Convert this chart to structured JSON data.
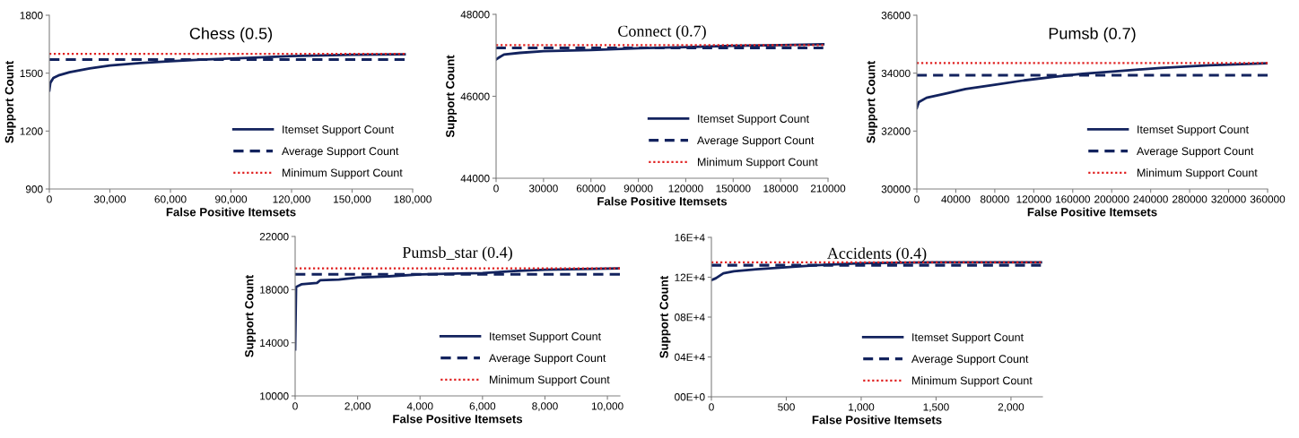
{
  "chart_data": [
    {
      "type": "line",
      "title": "Chess (0.5)",
      "xlabel": "False Positive Itemsets",
      "ylabel": "Support Count",
      "xlim": [
        0,
        180000
      ],
      "xticks": [
        0,
        {
          "value": 30000,
          "label": "30,000"
        },
        {
          "value": 60000,
          "label": "60,000"
        },
        {
          "value": 90000,
          "label": "90,000"
        },
        {
          "value": 120000,
          "label": "120,000"
        },
        {
          "value": 150000,
          "label": "150,000"
        },
        {
          "value": 180000,
          "label": "180,000"
        }
      ],
      "ylim": [
        900,
        1800
      ],
      "yticks": [
        900,
        1200,
        1500,
        1800
      ],
      "legend": "bottom right",
      "grid": false,
      "series": [
        {
          "name": "Itemset Support Count",
          "color": "#13235e",
          "line_style": "solid",
          "x": [
            0,
            500,
            2000,
            5000,
            10000,
            20000,
            30000,
            45000,
            60000,
            75000,
            90000,
            120000,
            150000,
            176000
          ],
          "values": [
            1410,
            1450,
            1475,
            1490,
            1505,
            1525,
            1540,
            1552,
            1562,
            1570,
            1576,
            1588,
            1595,
            1598
          ]
        },
        {
          "name": "Average Support Count",
          "color": "#13235e",
          "line_style": "dashed",
          "x": [
            0,
            176000
          ],
          "values": [
            1570,
            1570
          ]
        },
        {
          "name": "Minimum Support Count",
          "color": "#e02020",
          "line_style": "dotted",
          "x": [
            0,
            176000
          ],
          "values": [
            1600,
            1600
          ]
        }
      ]
    },
    {
      "type": "line",
      "title": "Connect (0.7)",
      "xlabel": "False Positive Itemsets",
      "ylabel": "Support Count",
      "xlim": [
        0,
        210000
      ],
      "xticks": [
        0,
        30000,
        60000,
        90000,
        120000,
        150000,
        180000,
        210000
      ],
      "ylim": [
        44000,
        48000
      ],
      "yticks": [
        44000,
        46000,
        48000
      ],
      "legend": "bottom right",
      "grid": false,
      "series": [
        {
          "name": "Itemset Support Count",
          "color": "#13235e",
          "line_style": "solid",
          "x": [
            0,
            2000,
            5000,
            15000,
            30000,
            60000,
            90000,
            120000,
            150000,
            180000,
            207000
          ],
          "values": [
            46900,
            46950,
            47020,
            47060,
            47100,
            47130,
            47170,
            47200,
            47230,
            47250,
            47270
          ]
        },
        {
          "name": "Average Support Count",
          "color": "#13235e",
          "line_style": "dashed",
          "x": [
            0,
            207000
          ],
          "values": [
            47180,
            47180
          ]
        },
        {
          "name": "Minimum Support Count",
          "color": "#e02020",
          "line_style": "dotted",
          "x": [
            0,
            207000
          ],
          "values": [
            47250,
            47250
          ]
        }
      ]
    },
    {
      "type": "line",
      "title": "Pumsb (0.7)",
      "xlabel": "False Positive Itemsets",
      "ylabel": "Support Count",
      "xlim": [
        0,
        360000
      ],
      "xticks": [
        0,
        40000,
        80000,
        120000,
        160000,
        200000,
        240000,
        280000,
        320000,
        360000
      ],
      "ylim": [
        30000,
        36000
      ],
      "yticks": [
        30000,
        32000,
        34000,
        36000
      ],
      "legend": "bottom right",
      "grid": false,
      "series": [
        {
          "name": "Itemset Support Count",
          "color": "#13235e",
          "line_style": "solid",
          "x": [
            0,
            2000,
            10000,
            30000,
            50000,
            80000,
            110000,
            140000,
            170000,
            210000,
            250000,
            300000,
            360000
          ],
          "values": [
            32800,
            33000,
            33150,
            33300,
            33450,
            33600,
            33750,
            33870,
            33980,
            34080,
            34180,
            34270,
            34340
          ]
        },
        {
          "name": "Average Support Count",
          "color": "#13235e",
          "line_style": "dashed",
          "x": [
            0,
            360000
          ],
          "values": [
            33930,
            33930
          ]
        },
        {
          "name": "Minimum Support Count",
          "color": "#e02020",
          "line_style": "dotted",
          "x": [
            0,
            360000
          ],
          "values": [
            34350,
            34350
          ]
        }
      ]
    },
    {
      "type": "line",
      "title": "Pumsb_star (0.4)",
      "xlabel": "False Positive Itemsets",
      "ylabel": "Support Count",
      "xlim": [
        0,
        10400
      ],
      "xticks": [
        0,
        {
          "value": 2000,
          "label": "2,000"
        },
        {
          "value": 4000,
          "label": "4,000"
        },
        {
          "value": 6000,
          "label": "6,000"
        },
        {
          "value": 8000,
          "label": "8,000"
        },
        {
          "value": 10000,
          "label": "10,000"
        }
      ],
      "ylim": [
        10000,
        22000
      ],
      "yticks": [
        10000,
        14000,
        18000,
        22000
      ],
      "legend": "bottom right",
      "grid": false,
      "series": [
        {
          "name": "Itemset Support Count",
          "color": "#13235e",
          "line_style": "solid",
          "x": [
            0,
            30,
            200,
            700,
            800,
            1400,
            2000,
            3000,
            4000,
            6000,
            7000,
            8000,
            10400
          ],
          "values": [
            13500,
            18200,
            18400,
            18500,
            18700,
            18750,
            18900,
            19000,
            19150,
            19250,
            19400,
            19500,
            19600
          ]
        },
        {
          "name": "Average Support Count",
          "color": "#13235e",
          "line_style": "dashed",
          "x": [
            0,
            10400
          ],
          "values": [
            19150,
            19150
          ]
        },
        {
          "name": "Minimum Support Count",
          "color": "#e02020",
          "line_style": "dotted",
          "x": [
            0,
            10400
          ],
          "values": [
            19600,
            19600
          ]
        }
      ]
    },
    {
      "type": "line",
      "title": "Accidents (0.4)",
      "xlabel": "False Positive Itemsets",
      "ylabel": "Support Count",
      "xlim": [
        0,
        2210
      ],
      "xticks": [
        0,
        500,
        {
          "value": 1000,
          "label": "1,000"
        },
        {
          "value": 1500,
          "label": "1,500"
        },
        {
          "value": 2000,
          "label": "2,000"
        }
      ],
      "ylim": [
        0,
        160000
      ],
      "yticks": [
        {
          "value": 0,
          "label": "00E+0"
        },
        {
          "value": 40000,
          "label": "04E+4"
        },
        {
          "value": 80000,
          "label": "08E+4"
        },
        {
          "value": 120000,
          "label": "12E+4"
        },
        {
          "value": 160000,
          "label": "16E+4"
        }
      ],
      "legend": "bottom right",
      "grid": false,
      "series": [
        {
          "name": "Itemset Support Count",
          "color": "#13235e",
          "line_style": "solid",
          "x": [
            0,
            30,
            80,
            150,
            300,
            500,
            700,
            1000,
            1500,
            2200
          ],
          "values": [
            117000,
            119000,
            124000,
            126000,
            128000,
            130000,
            132000,
            134000,
            135000,
            135000
          ]
        },
        {
          "name": "Average Support Count",
          "color": "#13235e",
          "line_style": "dashed",
          "x": [
            0,
            2200
          ],
          "values": [
            132000,
            132000
          ]
        },
        {
          "name": "Minimum Support Count",
          "color": "#e02020",
          "line_style": "dotted",
          "x": [
            0,
            2200
          ],
          "values": [
            135000,
            135000
          ]
        }
      ]
    }
  ]
}
